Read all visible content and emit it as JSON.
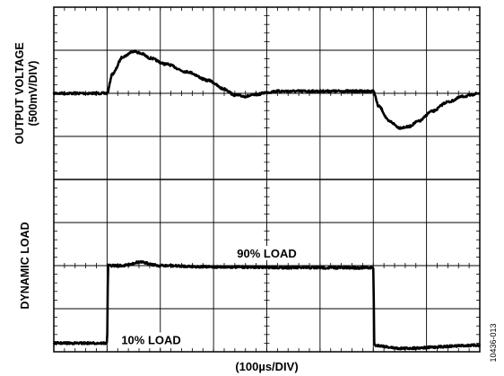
{
  "figure_code": "10436-013",
  "chart_data": {
    "type": "line",
    "grid": true,
    "x_axis": {
      "label": "(100µs/DIV)",
      "divisions": 8,
      "range": [
        0,
        8
      ]
    },
    "panels": [
      {
        "ylabel_line1": "OUTPUT VOLTAGE",
        "ylabel_line2": "(500mV/DIV)",
        "y_divisions": 4,
        "range": [
          -2,
          2
        ],
        "x": [
          0,
          1.0,
          1.1,
          1.3,
          1.5,
          1.65,
          1.8,
          2.1,
          2.5,
          2.9,
          3.2,
          3.4,
          3.6,
          3.8,
          4.0,
          4.2,
          5.0,
          6.0,
          6.1,
          6.3,
          6.5,
          6.65,
          6.85,
          7.1,
          7.4,
          7.7,
          8.0
        ],
        "y": [
          0,
          0,
          0.45,
          0.85,
          0.98,
          0.92,
          0.82,
          0.68,
          0.5,
          0.3,
          0.1,
          -0.04,
          -0.07,
          -0.03,
          0.02,
          0.05,
          0.05,
          0.05,
          -0.3,
          -0.65,
          -0.8,
          -0.78,
          -0.65,
          -0.42,
          -0.2,
          -0.07,
          0
        ]
      },
      {
        "ylabel": "DYNAMIC LOAD",
        "y_divisions": 4,
        "range": [
          -2,
          2
        ],
        "levels": {
          "low": "10% LOAD",
          "high": "90% LOAD"
        },
        "x": [
          0,
          1.0,
          1.02,
          1.3,
          1.6,
          2.0,
          3.0,
          5.0,
          6.0,
          6.02,
          6.5,
          8.0
        ],
        "y": [
          -1.8,
          -1.8,
          0,
          0,
          0.08,
          0,
          -0.03,
          -0.05,
          -0.05,
          -1.85,
          -1.92,
          -1.85
        ]
      }
    ]
  }
}
